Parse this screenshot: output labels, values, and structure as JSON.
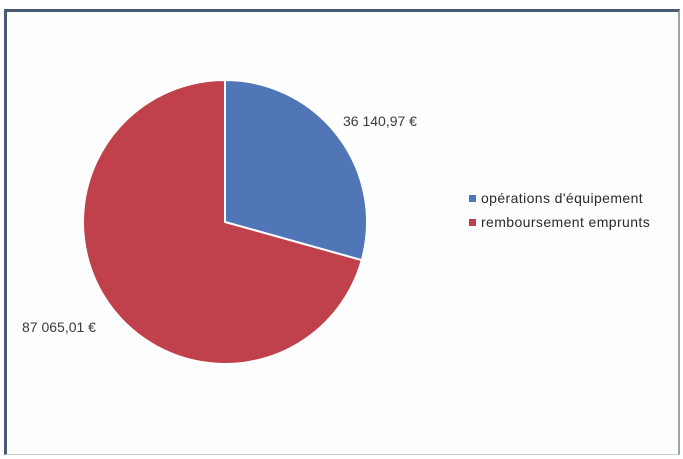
{
  "chart_data": {
    "type": "pie",
    "title": "",
    "slices": [
      {
        "name": "opérations d'équipement",
        "value": 36140.97,
        "label": "36 140,97 €",
        "color": "#5076b8"
      },
      {
        "name": "remboursement emprunts",
        "value": 87065.01,
        "label": "87 065,01 €",
        "color": "#c0404b"
      }
    ],
    "legend_position": "right"
  }
}
